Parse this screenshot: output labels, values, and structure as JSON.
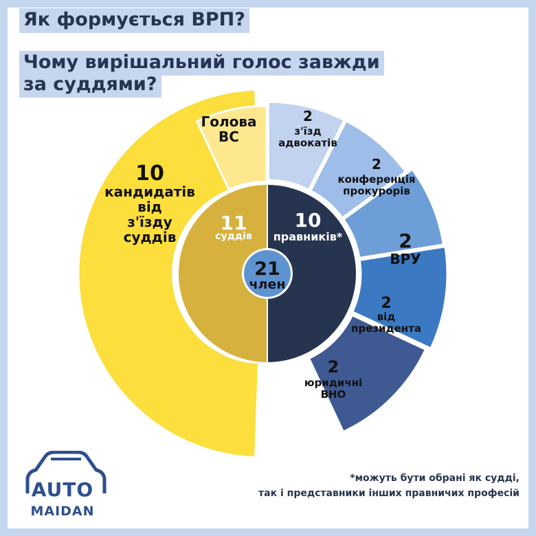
{
  "title": {
    "line1": "Як формується ВРП?",
    "line2": "Чому вирішальний голос завжди",
    "line3": "за суддями?"
  },
  "footnote": {
    "line1": "*можуть бути обрані як судді,",
    "line2": "так і представники інших правничих професій"
  },
  "logo": {
    "word1": "AUTO",
    "word2": "MAIDAN"
  },
  "colors": {
    "background": "#c5d6ee",
    "title_text": "#27344f",
    "judges_inner": "#d6b13d",
    "lawyers_inner": "#27344f",
    "center": "#5e93d2"
  },
  "chart_data": {
    "type": "pie",
    "center": {
      "value": "21",
      "label": "член"
    },
    "inner": [
      {
        "value": "11",
        "label": "суддів",
        "count": 11,
        "color": "#d6b13d"
      },
      {
        "value": "10",
        "label": "правників*",
        "count": 10,
        "color": "#27344f"
      }
    ],
    "outer": [
      {
        "value": "10",
        "label": [
          "кандидатів",
          "від",
          "з'їзду",
          "суддів"
        ],
        "count": 10,
        "color": "#fcde3c"
      },
      {
        "value": "",
        "label": [
          "Голова",
          "ВС"
        ],
        "count": 1,
        "color": "#fde890"
      },
      {
        "value": "2",
        "label": [
          "з'їзд",
          "адвокатів"
        ],
        "count": 2,
        "color": "#c2d3ef"
      },
      {
        "value": "2",
        "label": [
          "конференція",
          "прокурорів"
        ],
        "count": 2,
        "color": "#9ebde9"
      },
      {
        "value": "2",
        "label": [
          "ВРУ"
        ],
        "count": 2,
        "color": "#6e9ed8"
      },
      {
        "value": "2",
        "label": [
          "від",
          "президента"
        ],
        "count": 2,
        "color": "#3b79c3"
      },
      {
        "value": "2",
        "label": [
          "юридичні",
          "ВНО"
        ],
        "count": 2,
        "color": "#3f5a93"
      }
    ]
  }
}
